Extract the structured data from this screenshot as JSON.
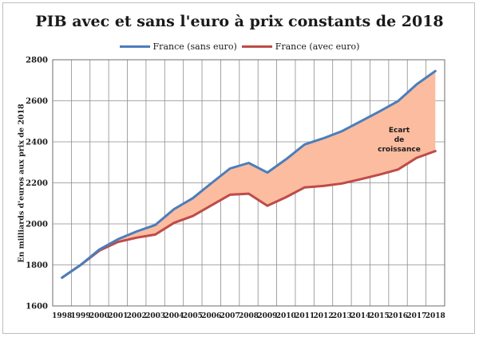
{
  "chart_data": {
    "type": "line",
    "title": "PIB avec et sans l'euro à prix constants de 2018",
    "xlabel": "",
    "ylabel": "En milliards d'euros aux prix de 2018",
    "x": [
      "1998",
      "1999",
      "2000",
      "2001",
      "2002",
      "2003",
      "2004",
      "2005",
      "2006",
      "2007",
      "2008",
      "2009",
      "2010",
      "2011",
      "2012",
      "2013",
      "2014",
      "2015",
      "2016",
      "2017",
      "2018"
    ],
    "ylim": [
      1600,
      2800
    ],
    "yticks": [
      1600,
      1800,
      2000,
      2200,
      2400,
      2600,
      2800
    ],
    "grid": true,
    "legend_position": "top",
    "series": [
      {
        "name": "France (sans euro)",
        "color": "#4a7ebb",
        "values": [
          1738,
          1800,
          1875,
          1925,
          1963,
          1995,
          2072,
          2125,
          2198,
          2270,
          2297,
          2250,
          2315,
          2387,
          2417,
          2452,
          2500,
          2548,
          2598,
          2680,
          2745
        ]
      },
      {
        "name": "France (avec euro)",
        "color": "#be4b48",
        "values": [
          1738,
          1800,
          1870,
          1912,
          1933,
          1948,
          2005,
          2038,
          2090,
          2142,
          2147,
          2088,
          2130,
          2178,
          2185,
          2197,
          2218,
          2240,
          2265,
          2322,
          2355
        ]
      }
    ],
    "fill_between": {
      "color": "#fbbca0"
    },
    "annotations": [
      "Ecart\nde\ncroissance"
    ]
  }
}
